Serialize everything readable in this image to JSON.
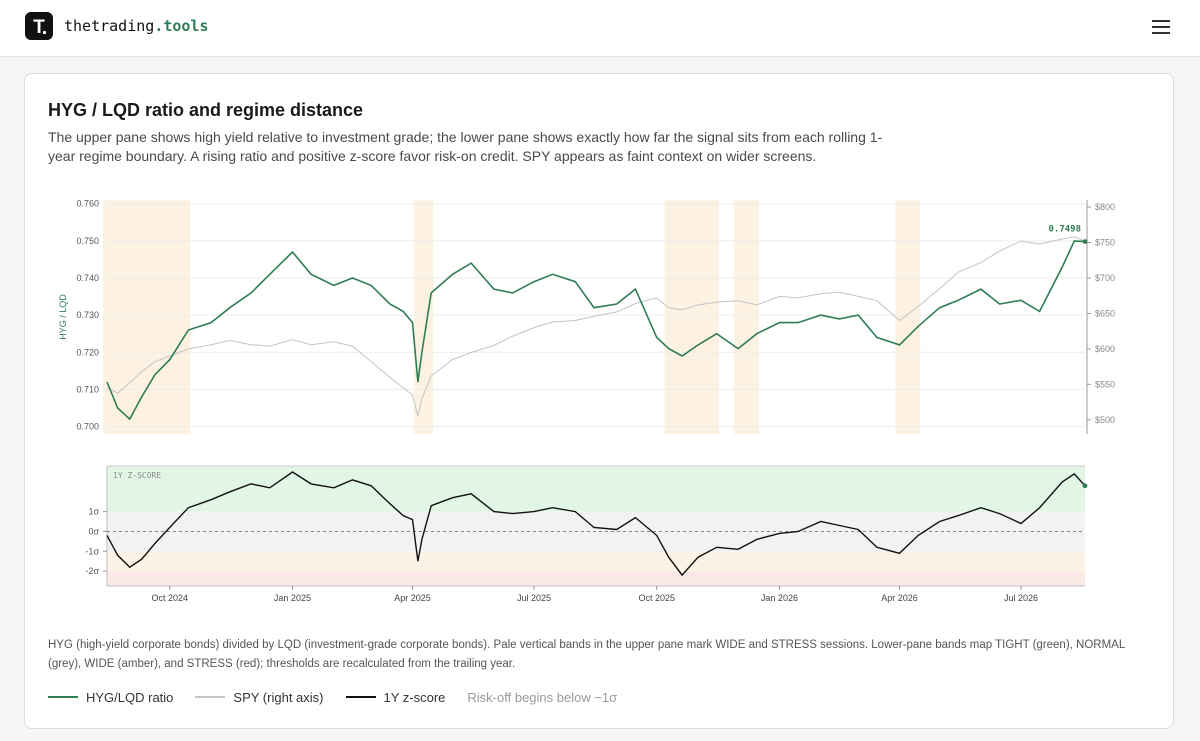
{
  "header": {
    "brand_main": "thetrading",
    "brand_tld": ".tools",
    "logo_letter": "T",
    "logo_icon": "logo-t-icon",
    "menu_icon": "hamburger-icon"
  },
  "card": {
    "title": "HYG / LQD ratio and regime distance",
    "description": "The upper pane shows high yield relative to investment grade; the lower pane shows exactly how far the signal sits from each rolling 1-year regime boundary. A rising ratio and positive z-score favor risk-on credit. SPY appears as faint context on wider screens.",
    "footnote": "HYG (high-yield corporate bonds) divided by LQD (investment-grade corporate bonds). Pale vertical bands in the upper pane mark WIDE and STRESS sessions. Lower-pane bands map TIGHT (green), NORMAL (grey), WIDE (amber), and STRESS (red); thresholds are recalculated from the trailing year."
  },
  "legend": {
    "items": [
      {
        "label": "HYG/LQD ratio",
        "color": "#2e7d55"
      },
      {
        "label": "SPY (right axis)",
        "color": "#c4c4c4"
      },
      {
        "label": "1Y z-score",
        "color": "#111111"
      }
    ],
    "note": "Risk-off begins below −1σ"
  },
  "colors": {
    "ratio": "#2e7d55",
    "spy": "#c4c4c4",
    "zscore": "#111111",
    "tight": "#e2f6e6",
    "normal": "#f2f2f2",
    "wide": "#fbf3e3",
    "stress": "#fbe9e6",
    "session_band": "#fdf1e2"
  },
  "chart_data": [
    {
      "type": "line",
      "ylabel": "HYG / LQD",
      "ylim": [
        0.698,
        0.761
      ],
      "y_ticks": [
        "0.760",
        "0.750",
        "0.740",
        "0.730",
        "0.720",
        "0.710",
        "0.700"
      ],
      "y2lim": [
        480,
        810
      ],
      "y2_ticks": [
        "$800",
        "$750",
        "$700",
        "$650",
        "$600",
        "$550",
        "$500"
      ],
      "last_label": "0.7498",
      "x": [
        "2024-08-15",
        "2024-08-23",
        "2024-09-01",
        "2024-09-10",
        "2024-09-20",
        "2024-10-01",
        "2024-10-15",
        "2024-11-01",
        "2024-11-15",
        "2024-12-01",
        "2024-12-15",
        "2025-01-01",
        "2025-01-15",
        "2025-02-01",
        "2025-02-15",
        "2025-03-01",
        "2025-03-15",
        "2025-03-25",
        "2025-04-01",
        "2025-04-05",
        "2025-04-08",
        "2025-04-15",
        "2025-05-01",
        "2025-05-15",
        "2025-06-01",
        "2025-06-15",
        "2025-07-01",
        "2025-07-15",
        "2025-08-01",
        "2025-08-15",
        "2025-09-01",
        "2025-09-15",
        "2025-10-01",
        "2025-10-10",
        "2025-10-20",
        "2025-11-01",
        "2025-11-15",
        "2025-12-01",
        "2025-12-15",
        "2026-01-01",
        "2026-01-15",
        "2026-02-01",
        "2026-02-15",
        "2026-03-01",
        "2026-03-15",
        "2026-04-01",
        "2026-04-15",
        "2026-05-01",
        "2026-05-15",
        "2026-06-01",
        "2026-06-15",
        "2026-07-01",
        "2026-07-15",
        "2026-08-01",
        "2026-08-10",
        "2026-08-18"
      ],
      "series": [
        {
          "name": "HYG/LQD ratio",
          "axis": "left",
          "values": [
            0.712,
            0.705,
            0.702,
            0.708,
            0.714,
            0.718,
            0.726,
            0.728,
            0.732,
            0.736,
            0.741,
            0.747,
            0.741,
            0.738,
            0.74,
            0.738,
            0.733,
            0.731,
            0.728,
            0.712,
            0.72,
            0.736,
            0.741,
            0.744,
            0.737,
            0.736,
            0.739,
            0.741,
            0.739,
            0.732,
            0.733,
            0.737,
            0.724,
            0.721,
            0.719,
            0.722,
            0.725,
            0.721,
            0.725,
            0.728,
            0.728,
            0.73,
            0.729,
            0.73,
            0.724,
            0.722,
            0.727,
            0.732,
            0.734,
            0.737,
            0.733,
            0.734,
            0.731,
            0.743,
            0.75,
            0.7498
          ]
        },
        {
          "name": "SPY (right axis)",
          "axis": "right",
          "values": [
            545,
            538,
            552,
            568,
            582,
            590,
            600,
            606,
            612,
            606,
            604,
            613,
            606,
            610,
            604,
            582,
            560,
            545,
            535,
            505,
            530,
            562,
            585,
            595,
            605,
            618,
            630,
            638,
            640,
            646,
            652,
            664,
            672,
            658,
            655,
            662,
            666,
            668,
            662,
            674,
            672,
            678,
            680,
            674,
            668,
            640,
            660,
            685,
            708,
            722,
            738,
            752,
            748,
            755,
            758,
            752
          ]
        }
      ]
    },
    {
      "type": "line",
      "title": "1Y Z-SCORE",
      "y_ticks": [
        "1σ",
        "0σ",
        "-1σ",
        "-2σ"
      ],
      "ylim": [
        -2.75,
        3.3
      ],
      "regime_bands": [
        {
          "name": "TIGHT",
          "from": 1.0,
          "to": 3.3
        },
        {
          "name": "NORMAL",
          "from": -1.0,
          "to": 1.0
        },
        {
          "name": "WIDE",
          "from": -2.0,
          "to": -1.0
        },
        {
          "name": "STRESS",
          "from": -2.75,
          "to": -2.0
        }
      ],
      "x_ticks": [
        "Oct 2024",
        "Jan 2025",
        "Apr 2025",
        "Jul 2025",
        "Oct 2025",
        "Jan 2026",
        "Apr 2026",
        "Jul 2026"
      ],
      "x_tick_dates": [
        "2024-10-01",
        "2025-01-01",
        "2025-04-01",
        "2025-07-01",
        "2025-10-01",
        "2026-01-01",
        "2026-04-01",
        "2026-07-01"
      ],
      "x": [
        "2024-08-15",
        "2024-08-23",
        "2024-09-01",
        "2024-09-10",
        "2024-09-20",
        "2024-10-01",
        "2024-10-15",
        "2024-11-01",
        "2024-11-15",
        "2024-12-01",
        "2024-12-15",
        "2025-01-01",
        "2025-01-15",
        "2025-02-01",
        "2025-02-15",
        "2025-03-01",
        "2025-03-15",
        "2025-03-25",
        "2025-04-01",
        "2025-04-05",
        "2025-04-08",
        "2025-04-15",
        "2025-05-01",
        "2025-05-15",
        "2025-06-01",
        "2025-06-15",
        "2025-07-01",
        "2025-07-15",
        "2025-08-01",
        "2025-08-15",
        "2025-09-01",
        "2025-09-15",
        "2025-10-01",
        "2025-10-10",
        "2025-10-20",
        "2025-11-01",
        "2025-11-15",
        "2025-12-01",
        "2025-12-15",
        "2026-01-01",
        "2026-01-15",
        "2026-02-01",
        "2026-02-15",
        "2026-03-01",
        "2026-03-15",
        "2026-04-01",
        "2026-04-15",
        "2026-05-01",
        "2026-05-15",
        "2026-06-01",
        "2026-06-15",
        "2026-07-01",
        "2026-07-15",
        "2026-08-01",
        "2026-08-10",
        "2026-08-18"
      ],
      "series": [
        {
          "name": "1Y z-score",
          "values": [
            -0.2,
            -1.2,
            -1.8,
            -1.4,
            -0.6,
            0.2,
            1.2,
            1.6,
            2.0,
            2.4,
            2.2,
            3.0,
            2.4,
            2.2,
            2.6,
            2.3,
            1.4,
            0.8,
            0.6,
            -1.5,
            -0.4,
            1.3,
            1.7,
            1.9,
            1.0,
            0.9,
            1.0,
            1.2,
            1.0,
            0.2,
            0.1,
            0.7,
            -0.2,
            -1.3,
            -2.2,
            -1.3,
            -0.8,
            -0.9,
            -0.4,
            -0.1,
            0.0,
            0.5,
            0.3,
            0.1,
            -0.8,
            -1.1,
            -0.2,
            0.5,
            0.8,
            1.2,
            0.9,
            0.4,
            1.2,
            2.5,
            2.9,
            2.3
          ]
        }
      ]
    }
  ]
}
